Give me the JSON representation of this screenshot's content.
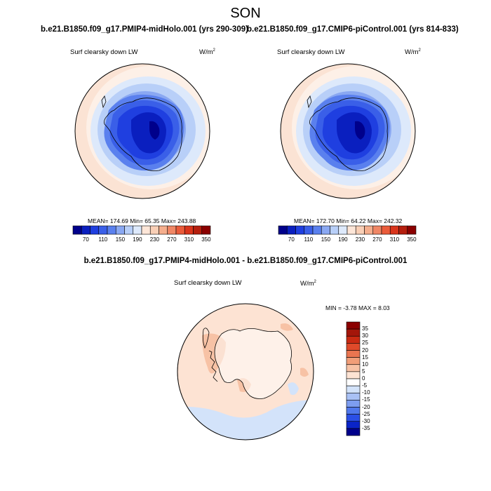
{
  "figure": {
    "season": "SON",
    "case_a_title": "b.e21.B1850.f09_g17.PMIP4-midHolo.001 (yrs 290-309)",
    "case_b_title": "b.e21.B1850.f09_g17.CMIP6-piControl.001 (yrs 814-833)",
    "diff_title": "b.e21.B1850.f09_g17.PMIP4-midHolo.001 - b.e21.B1850.f09_g17.CMIP6-piControl.001"
  },
  "panels": {
    "left": {
      "variable": "Surf clearsky down LW",
      "units_base": "W/m",
      "units_exp": "2",
      "stats": "MEAN= 174.69  Min=  65.35  Max= 243.88"
    },
    "right": {
      "variable": "Surf clearsky down LW",
      "units_base": "W/m",
      "units_exp": "2",
      "stats": "MEAN= 172.70  Min=  64.22  Max= 242.32"
    },
    "diff": {
      "variable": "Surf clearsky down LW",
      "units_base": "W/m",
      "units_exp": "2",
      "stats": "MIN =  -3.78 MAX =   8.03"
    }
  },
  "colorbar_main": {
    "colors": [
      "#00008b",
      "#0a1fbf",
      "#1f3fe0",
      "#3a5fe8",
      "#5a80ee",
      "#8aa8f2",
      "#b8cff8",
      "#dde9fb",
      "#fde6d8",
      "#f9cfb6",
      "#f5ae8d",
      "#f08765",
      "#ea5b3a",
      "#d9341b",
      "#b51f0e",
      "#8b0000"
    ],
    "tick_labels": [
      "70",
      "110",
      "150",
      "190",
      "230",
      "270",
      "310",
      "350"
    ]
  },
  "colorbar_diff": {
    "colors": [
      "#00008b",
      "#0a24c8",
      "#2a4fe6",
      "#5078ec",
      "#7d9df0",
      "#a9c1f5",
      "#d3e3fa",
      "#ffffff",
      "#fde3d3",
      "#f7c2a5",
      "#f19e78",
      "#ea7550",
      "#df4a2a",
      "#c92a12",
      "#a4160a",
      "#8b0000"
    ],
    "tick_labels": [
      "35",
      "30",
      "25",
      "20",
      "15",
      "10",
      "5",
      "0",
      "-5",
      "-10",
      "-15",
      "-20",
      "-25",
      "-30",
      "-35"
    ]
  }
}
